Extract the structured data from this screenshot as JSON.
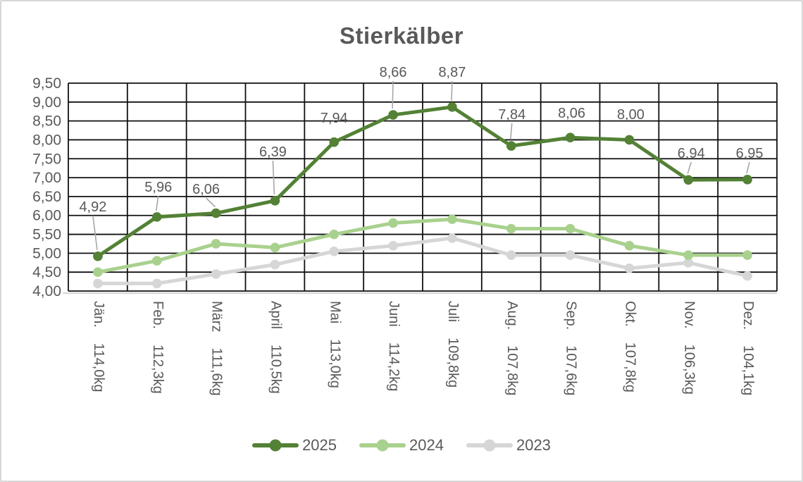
{
  "chart_data": {
    "type": "line",
    "title": "Stierkälber",
    "categories": [
      "Jän.",
      "Feb.",
      "März",
      "April",
      "Mai",
      "Juni",
      "Juli",
      "Aug.",
      "Sep.",
      "Okt.",
      "Nov.",
      "Dez."
    ],
    "category_weights": [
      "114,0kg",
      "112,3kg",
      "111,6kg",
      "110,5kg",
      "113,0kg",
      "114,2kg",
      "109,8kg",
      "107,8kg",
      "107,6kg",
      "107,8kg",
      "106,3kg",
      "104,1kg"
    ],
    "series": [
      {
        "name": "2025",
        "color": "#538135",
        "values": [
          4.92,
          5.96,
          6.06,
          6.39,
          7.94,
          8.66,
          8.87,
          7.84,
          8.06,
          8.0,
          6.94,
          6.95
        ],
        "point_labels": [
          "4,92",
          "5,96",
          "6,06",
          "6,39",
          "7,94",
          "8,66",
          "8,87",
          "7,84",
          "8,06",
          "8,00",
          "6,94",
          "6,95"
        ]
      },
      {
        "name": "2024",
        "color": "#a9d18e",
        "values": [
          4.5,
          4.8,
          5.25,
          5.15,
          5.5,
          5.8,
          5.9,
          5.65,
          5.65,
          5.2,
          4.95,
          4.95
        ]
      },
      {
        "name": "2023",
        "color": "#d6d6d6",
        "values": [
          4.2,
          4.2,
          4.45,
          4.7,
          5.05,
          5.2,
          5.4,
          4.95,
          4.95,
          4.6,
          4.75,
          4.4
        ]
      }
    ],
    "ylim": [
      4.0,
      9.5
    ],
    "ytick_step": 0.5,
    "ytick_labels": [
      "9,50",
      "9,00",
      "8,50",
      "8,00",
      "7,50",
      "7,00",
      "6,50",
      "6,00",
      "5,50",
      "5,00",
      "4,50",
      "4,00"
    ],
    "grid": true,
    "grid_color": "#111111",
    "axis_line_color": "#d9d9d9",
    "text_color": "#595959",
    "leader_line_color": "#a6a6a6",
    "legend_position": "bottom"
  }
}
